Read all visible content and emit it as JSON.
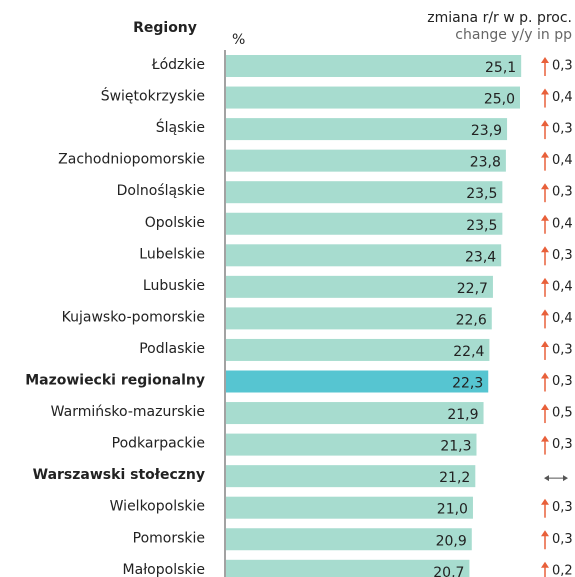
{
  "chart_data": {
    "type": "bar",
    "orientation": "horizontal",
    "title": "Regiony",
    "unit_label": "%",
    "change_title": "zmiana r/r w p. proc.",
    "change_subtitle": "change y/y in pp",
    "categories": [
      "Łódzkie",
      "Świętokrzyskie",
      "Śląskie",
      "Zachodniopomorskie",
      "Dolnośląskie",
      "Opolskie",
      "Lubelskie",
      "Lubuskie",
      "Kujawsko-pomorskie",
      "Podlaskie",
      "Mazowiecki regionalny",
      "Warmińsko-mazurskie",
      "Podkarpackie",
      "Warszawski stołeczny",
      "Wielkopolskie",
      "Pomorskie",
      "Małopolskie"
    ],
    "values": [
      25.1,
      25.0,
      23.9,
      23.8,
      23.5,
      23.5,
      23.4,
      22.7,
      22.6,
      22.4,
      22.3,
      21.9,
      21.3,
      21.2,
      21.0,
      20.9,
      20.7
    ],
    "value_labels": [
      "25,1",
      "25,0",
      "23,9",
      "23,8",
      "23,5",
      "23,5",
      "23,4",
      "22,7",
      "22,6",
      "22,4",
      "22,3",
      "21,9",
      "21,3",
      "21,2",
      "21,0",
      "20,9",
      "20,7"
    ],
    "color": "#a7dccf",
    "highlight_color": "#56c5d1",
    "highlight": [
      10
    ],
    "bold_categories": [
      10,
      13
    ],
    "change": {
      "color": "#e8603a",
      "values": [
        0.3,
        0.4,
        0.3,
        0.4,
        0.3,
        0.4,
        0.3,
        0.4,
        0.4,
        0.3,
        0.3,
        0.5,
        0.3,
        null,
        0.3,
        0.3,
        0.2
      ],
      "value_labels": [
        "0,3",
        "0,4",
        "0,3",
        "0,4",
        "0,3",
        "0,4",
        "0,3",
        "0,4",
        "0,4",
        "0,3",
        "0,3",
        "0,5",
        "0,3",
        null,
        "0,3",
        "0,3",
        "0,2"
      ]
    }
  }
}
